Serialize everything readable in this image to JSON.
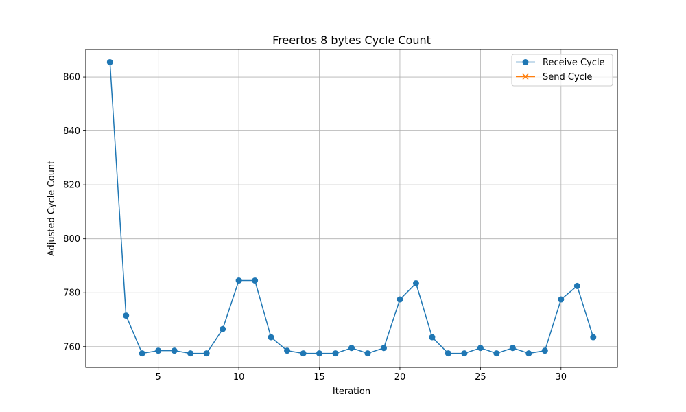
{
  "chart_data": {
    "type": "line",
    "title": "Freertos 8 bytes Cycle Count",
    "xlabel": "Iteration",
    "ylabel": "Adjusted Cycle Count",
    "xlim": [
      0.5,
      33.5
    ],
    "ylim": [
      752.3,
      870.2
    ],
    "xticks": [
      5,
      10,
      15,
      20,
      25,
      30
    ],
    "yticks": [
      760,
      780,
      800,
      820,
      840,
      860
    ],
    "grid": true,
    "legend_position": "top-right",
    "series": [
      {
        "name": "Receive Cycle",
        "color": "#1f77b4",
        "marker": "circle",
        "x": [
          2,
          3,
          4,
          5,
          6,
          7,
          8,
          9,
          10,
          11,
          12,
          13,
          14,
          15,
          16,
          17,
          18,
          19,
          20,
          21,
          22,
          23,
          24,
          25,
          26,
          27,
          28,
          29,
          30,
          31,
          32
        ],
        "y": [
          865.5,
          771.5,
          757.5,
          758.5,
          758.5,
          757.5,
          757.5,
          766.5,
          784.5,
          784.5,
          763.5,
          758.5,
          757.5,
          757.5,
          757.5,
          759.5,
          757.5,
          759.5,
          777.5,
          783.5,
          763.5,
          757.5,
          757.5,
          759.5,
          757.5,
          759.5,
          757.5,
          758.5,
          777.5,
          782.5,
          763.5
        ]
      },
      {
        "name": "Send Cycle",
        "color": "#ff7f0e",
        "marker": "x",
        "x": [],
        "y": []
      }
    ]
  }
}
